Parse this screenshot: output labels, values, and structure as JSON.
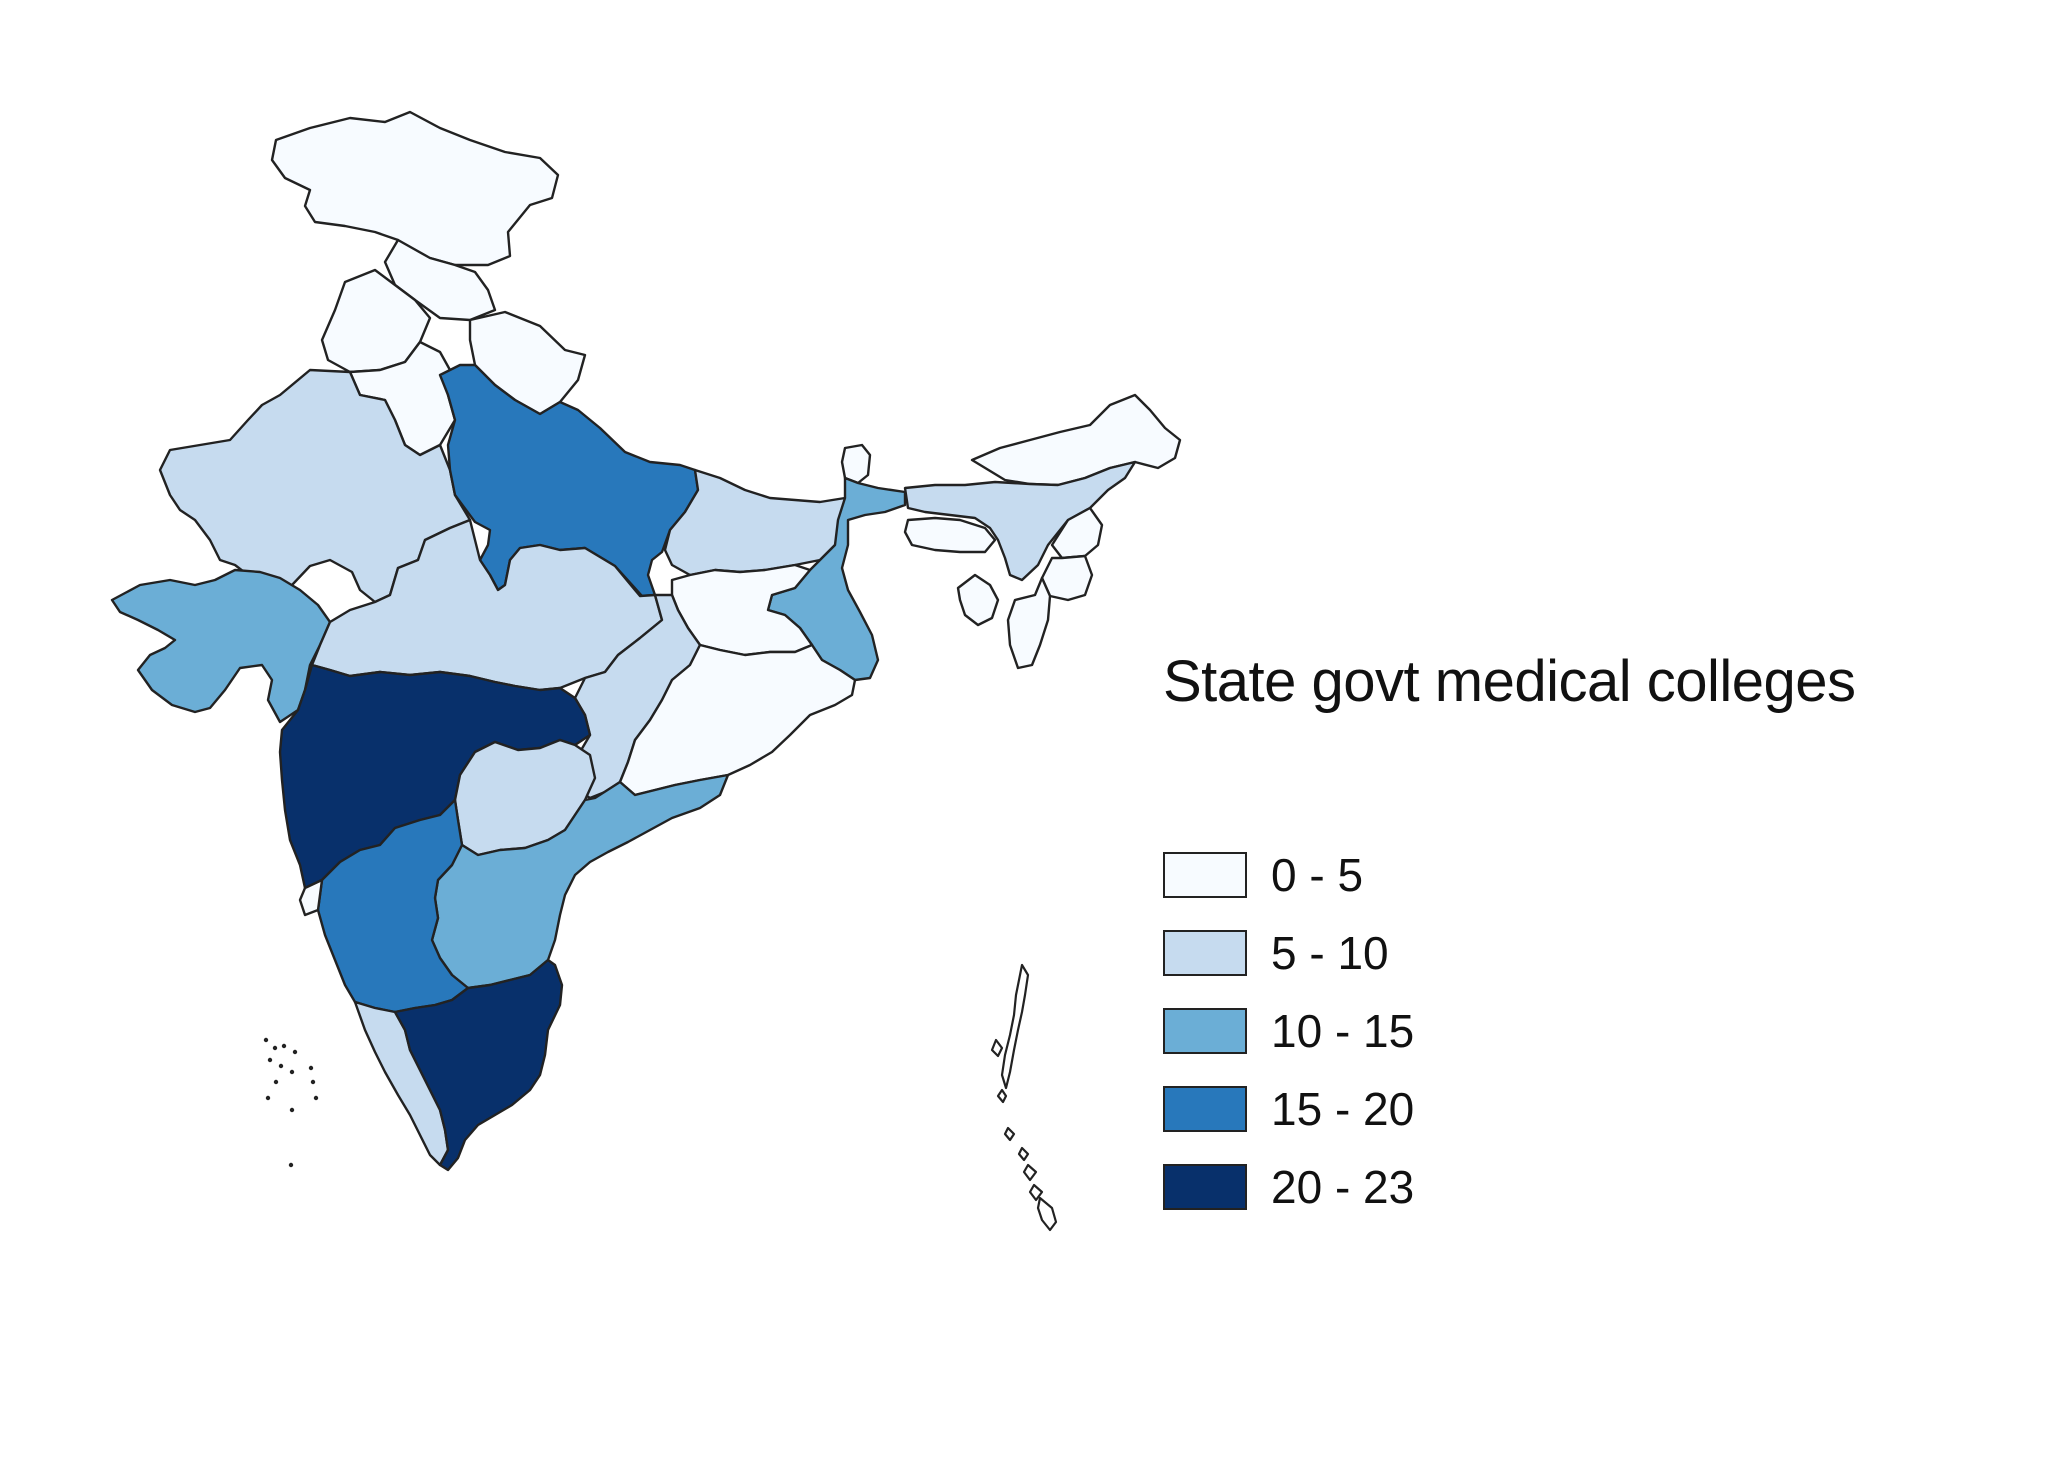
{
  "legend": {
    "title": "State govt medical colleges",
    "bins": [
      {
        "label": "0 - 5",
        "color": "#f7fbff"
      },
      {
        "label": "5 - 10",
        "color": "#c6dbef"
      },
      {
        "label": "10 - 15",
        "color": "#6baed6"
      },
      {
        "label": "15 - 20",
        "color": "#2878bb"
      },
      {
        "label": "20 - 23",
        "color": "#08306b"
      }
    ]
  },
  "regions": [
    {
      "id": "jammu-kashmir",
      "bin": 0
    },
    {
      "id": "himachal",
      "bin": 0
    },
    {
      "id": "punjab",
      "bin": 0
    },
    {
      "id": "uttarakhand",
      "bin": 0
    },
    {
      "id": "haryana",
      "bin": 0
    },
    {
      "id": "rajasthan",
      "bin": 1
    },
    {
      "id": "uttar-pradesh",
      "bin": 3
    },
    {
      "id": "bihar",
      "bin": 1
    },
    {
      "id": "sikkim",
      "bin": 0
    },
    {
      "id": "arunachal",
      "bin": 0
    },
    {
      "id": "assam",
      "bin": 1
    },
    {
      "id": "meghalaya",
      "bin": 0
    },
    {
      "id": "nagaland",
      "bin": 0
    },
    {
      "id": "manipur",
      "bin": 0
    },
    {
      "id": "mizoram",
      "bin": 0
    },
    {
      "id": "tripura",
      "bin": 0
    },
    {
      "id": "west-bengal",
      "bin": 2
    },
    {
      "id": "jharkhand",
      "bin": 0
    },
    {
      "id": "gujarat",
      "bin": 2
    },
    {
      "id": "madhya-pradesh",
      "bin": 1
    },
    {
      "id": "chhattisgarh",
      "bin": 1
    },
    {
      "id": "odisha",
      "bin": 0
    },
    {
      "id": "maharashtra",
      "bin": 4
    },
    {
      "id": "telangana",
      "bin": 1
    },
    {
      "id": "andhra-pradesh",
      "bin": 2
    },
    {
      "id": "karnataka",
      "bin": 3
    },
    {
      "id": "goa",
      "bin": 0
    },
    {
      "id": "kerala",
      "bin": 1
    },
    {
      "id": "tamil-nadu",
      "bin": 4
    }
  ]
}
